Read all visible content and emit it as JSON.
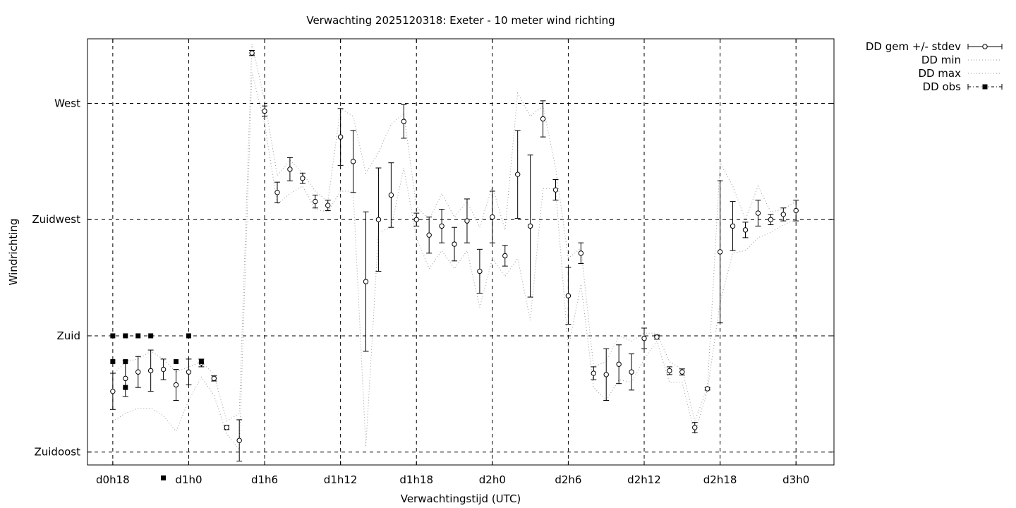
{
  "chart_data": {
    "type": "line",
    "title": "Verwachting 2025120318: Exeter - 10 meter wind richting",
    "xlabel": "Verwachtingstijd (UTC)",
    "ylabel": "Windrichting",
    "x_unit": "hours after d0h0",
    "xlim": [
      16,
      75
    ],
    "xticks": [
      {
        "x": 18,
        "label": "d0h18"
      },
      {
        "x": 24,
        "label": "d1h0"
      },
      {
        "x": 30,
        "label": "d1h6"
      },
      {
        "x": 36,
        "label": "d1h12"
      },
      {
        "x": 42,
        "label": "d1h18"
      },
      {
        "x": 48,
        "label": "d2h0"
      },
      {
        "x": 54,
        "label": "d2h6"
      },
      {
        "x": 60,
        "label": "d2h12"
      },
      {
        "x": 66,
        "label": "d2h18"
      },
      {
        "x": 72,
        "label": "d3h0"
      }
    ],
    "y_unit": "degrees",
    "ylim": [
      130,
      295
    ],
    "yticks": [
      {
        "y": 135,
        "label": "Zuidoost"
      },
      {
        "y": 180,
        "label": "Zuid"
      },
      {
        "y": 225,
        "label": "Zuidwest"
      },
      {
        "y": 270,
        "label": "West"
      }
    ],
    "grid": true,
    "legend_position": "outside-top-right",
    "series": [
      {
        "name": "DD gem +/- stdev",
        "style": "errorbars-points",
        "x": [
          18,
          19,
          20,
          21,
          22,
          23,
          24,
          25,
          26,
          27,
          28,
          29,
          30,
          31,
          32,
          33,
          34,
          35,
          36,
          37,
          38,
          39,
          40,
          41,
          42,
          43,
          44,
          45,
          46,
          47,
          48,
          49,
          50,
          51,
          52,
          53,
          54,
          55,
          56,
          57,
          58,
          59,
          60,
          61,
          62,
          63,
          64,
          65,
          66,
          67,
          68,
          69,
          70,
          71,
          72
        ],
        "mean": [
          158.5,
          163.5,
          166,
          166.5,
          167,
          161,
          166,
          169.5,
          163.5,
          144.5,
          139.5,
          289.5,
          267,
          235.5,
          244.5,
          241,
          232,
          230.5,
          257,
          247.5,
          201,
          225,
          234.5,
          263,
          225,
          219,
          222.5,
          215.5,
          224.5,
          205,
          226,
          211,
          242.5,
          222.5,
          264,
          236.5,
          195.5,
          212,
          165.5,
          165,
          169,
          166,
          179,
          179.5,
          166.5,
          166,
          144.5,
          159.5,
          212.5,
          222.5,
          221,
          227.5,
          225,
          227,
          228.5
        ],
        "stdev": [
          7,
          7,
          6,
          8,
          4,
          6,
          5,
          1.5,
          1,
          0.8,
          8,
          1,
          2,
          4,
          4.5,
          2,
          2.5,
          2,
          11,
          12,
          27,
          20,
          12.5,
          6.5,
          2.5,
          7,
          6.5,
          6.5,
          8.5,
          8.5,
          10,
          4,
          17,
          27.5,
          7,
          4,
          11,
          4,
          2.5,
          10,
          7.5,
          7,
          4,
          0.8,
          1.5,
          1.2,
          2,
          0.5,
          27.5,
          9.5,
          3,
          5,
          2,
          2.5,
          4
        ]
      },
      {
        "name": "DD min",
        "style": "dotted",
        "x": [
          18,
          19,
          20,
          21,
          22,
          23,
          24,
          25,
          26,
          27,
          28,
          29,
          30,
          31,
          32,
          33,
          34,
          35,
          36,
          37,
          38,
          39,
          40,
          41,
          42,
          43,
          44,
          45,
          46,
          47,
          48,
          49,
          50,
          51,
          52,
          53,
          54,
          55,
          56,
          57,
          58,
          59,
          60,
          61,
          62,
          63,
          64,
          65,
          66,
          67,
          68,
          69,
          70,
          71,
          72
        ],
        "values": [
          147,
          150,
          152,
          152,
          149,
          143,
          155,
          164,
          157,
          142,
          136,
          282,
          262,
          231,
          235,
          238,
          229,
          228,
          236,
          236,
          137,
          220,
          222,
          245,
          218,
          206,
          213,
          206,
          213,
          191,
          210,
          203,
          210,
          186,
          237,
          237,
          175,
          200,
          160,
          155,
          163,
          162,
          171,
          178,
          162,
          162,
          142,
          159,
          193,
          212,
          213,
          218,
          220,
          223,
          225
        ]
      },
      {
        "name": "DD max",
        "style": "dotted",
        "x": [
          18,
          19,
          20,
          21,
          22,
          23,
          24,
          25,
          26,
          27,
          28,
          29,
          30,
          31,
          32,
          33,
          34,
          35,
          36,
          37,
          38,
          39,
          40,
          41,
          42,
          43,
          44,
          45,
          46,
          47,
          48,
          49,
          50,
          51,
          52,
          53,
          54,
          55,
          56,
          57,
          58,
          59,
          60,
          61,
          62,
          63,
          64,
          65,
          66,
          67,
          68,
          69,
          70,
          71,
          72
        ],
        "values": [
          165,
          170,
          171,
          174,
          171,
          166,
          168,
          170,
          165,
          147,
          150,
          293,
          271,
          242,
          248,
          243,
          236,
          232,
          268,
          265,
          243,
          251,
          262,
          266,
          230,
          225,
          235,
          226,
          232,
          222,
          238,
          221,
          274,
          265,
          269,
          245,
          210,
          214,
          168,
          170,
          180,
          178,
          181,
          181,
          170,
          167,
          147,
          160,
          247,
          238,
          225,
          238,
          228,
          229,
          232
        ]
      },
      {
        "name": "DD obs",
        "style": "points-squares",
        "x": [
          18,
          18,
          19,
          19,
          19,
          20,
          21,
          22,
          23,
          24,
          25
        ],
        "values": [
          180,
          170,
          180,
          170,
          160,
          180,
          180,
          125,
          170,
          180,
          170
        ]
      }
    ]
  }
}
